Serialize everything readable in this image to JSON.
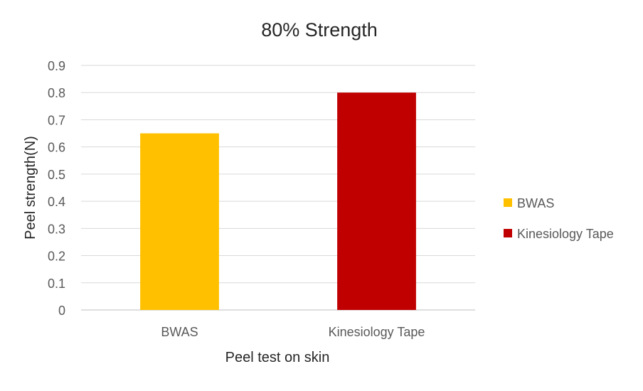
{
  "chart_data": {
    "type": "bar",
    "title": "80% Strength",
    "xlabel": "Peel test on skin",
    "ylabel": "Peel strength(N)",
    "categories": [
      "BWAS",
      "Kinesiology Tape"
    ],
    "values": [
      0.65,
      0.8
    ],
    "colors": [
      "#FFC000",
      "#C00000"
    ],
    "ylim": [
      0,
      0.9
    ],
    "yticks": [
      "0",
      "0.1",
      "0.2",
      "0.3",
      "0.4",
      "0.5",
      "0.6",
      "0.7",
      "0.8",
      "0.9"
    ],
    "grid": true,
    "legend": {
      "position": "right",
      "entries": [
        {
          "label": "BWAS",
          "color": "#FFC000"
        },
        {
          "label": "Kinesiology Tape",
          "color": "#C00000"
        }
      ]
    }
  }
}
